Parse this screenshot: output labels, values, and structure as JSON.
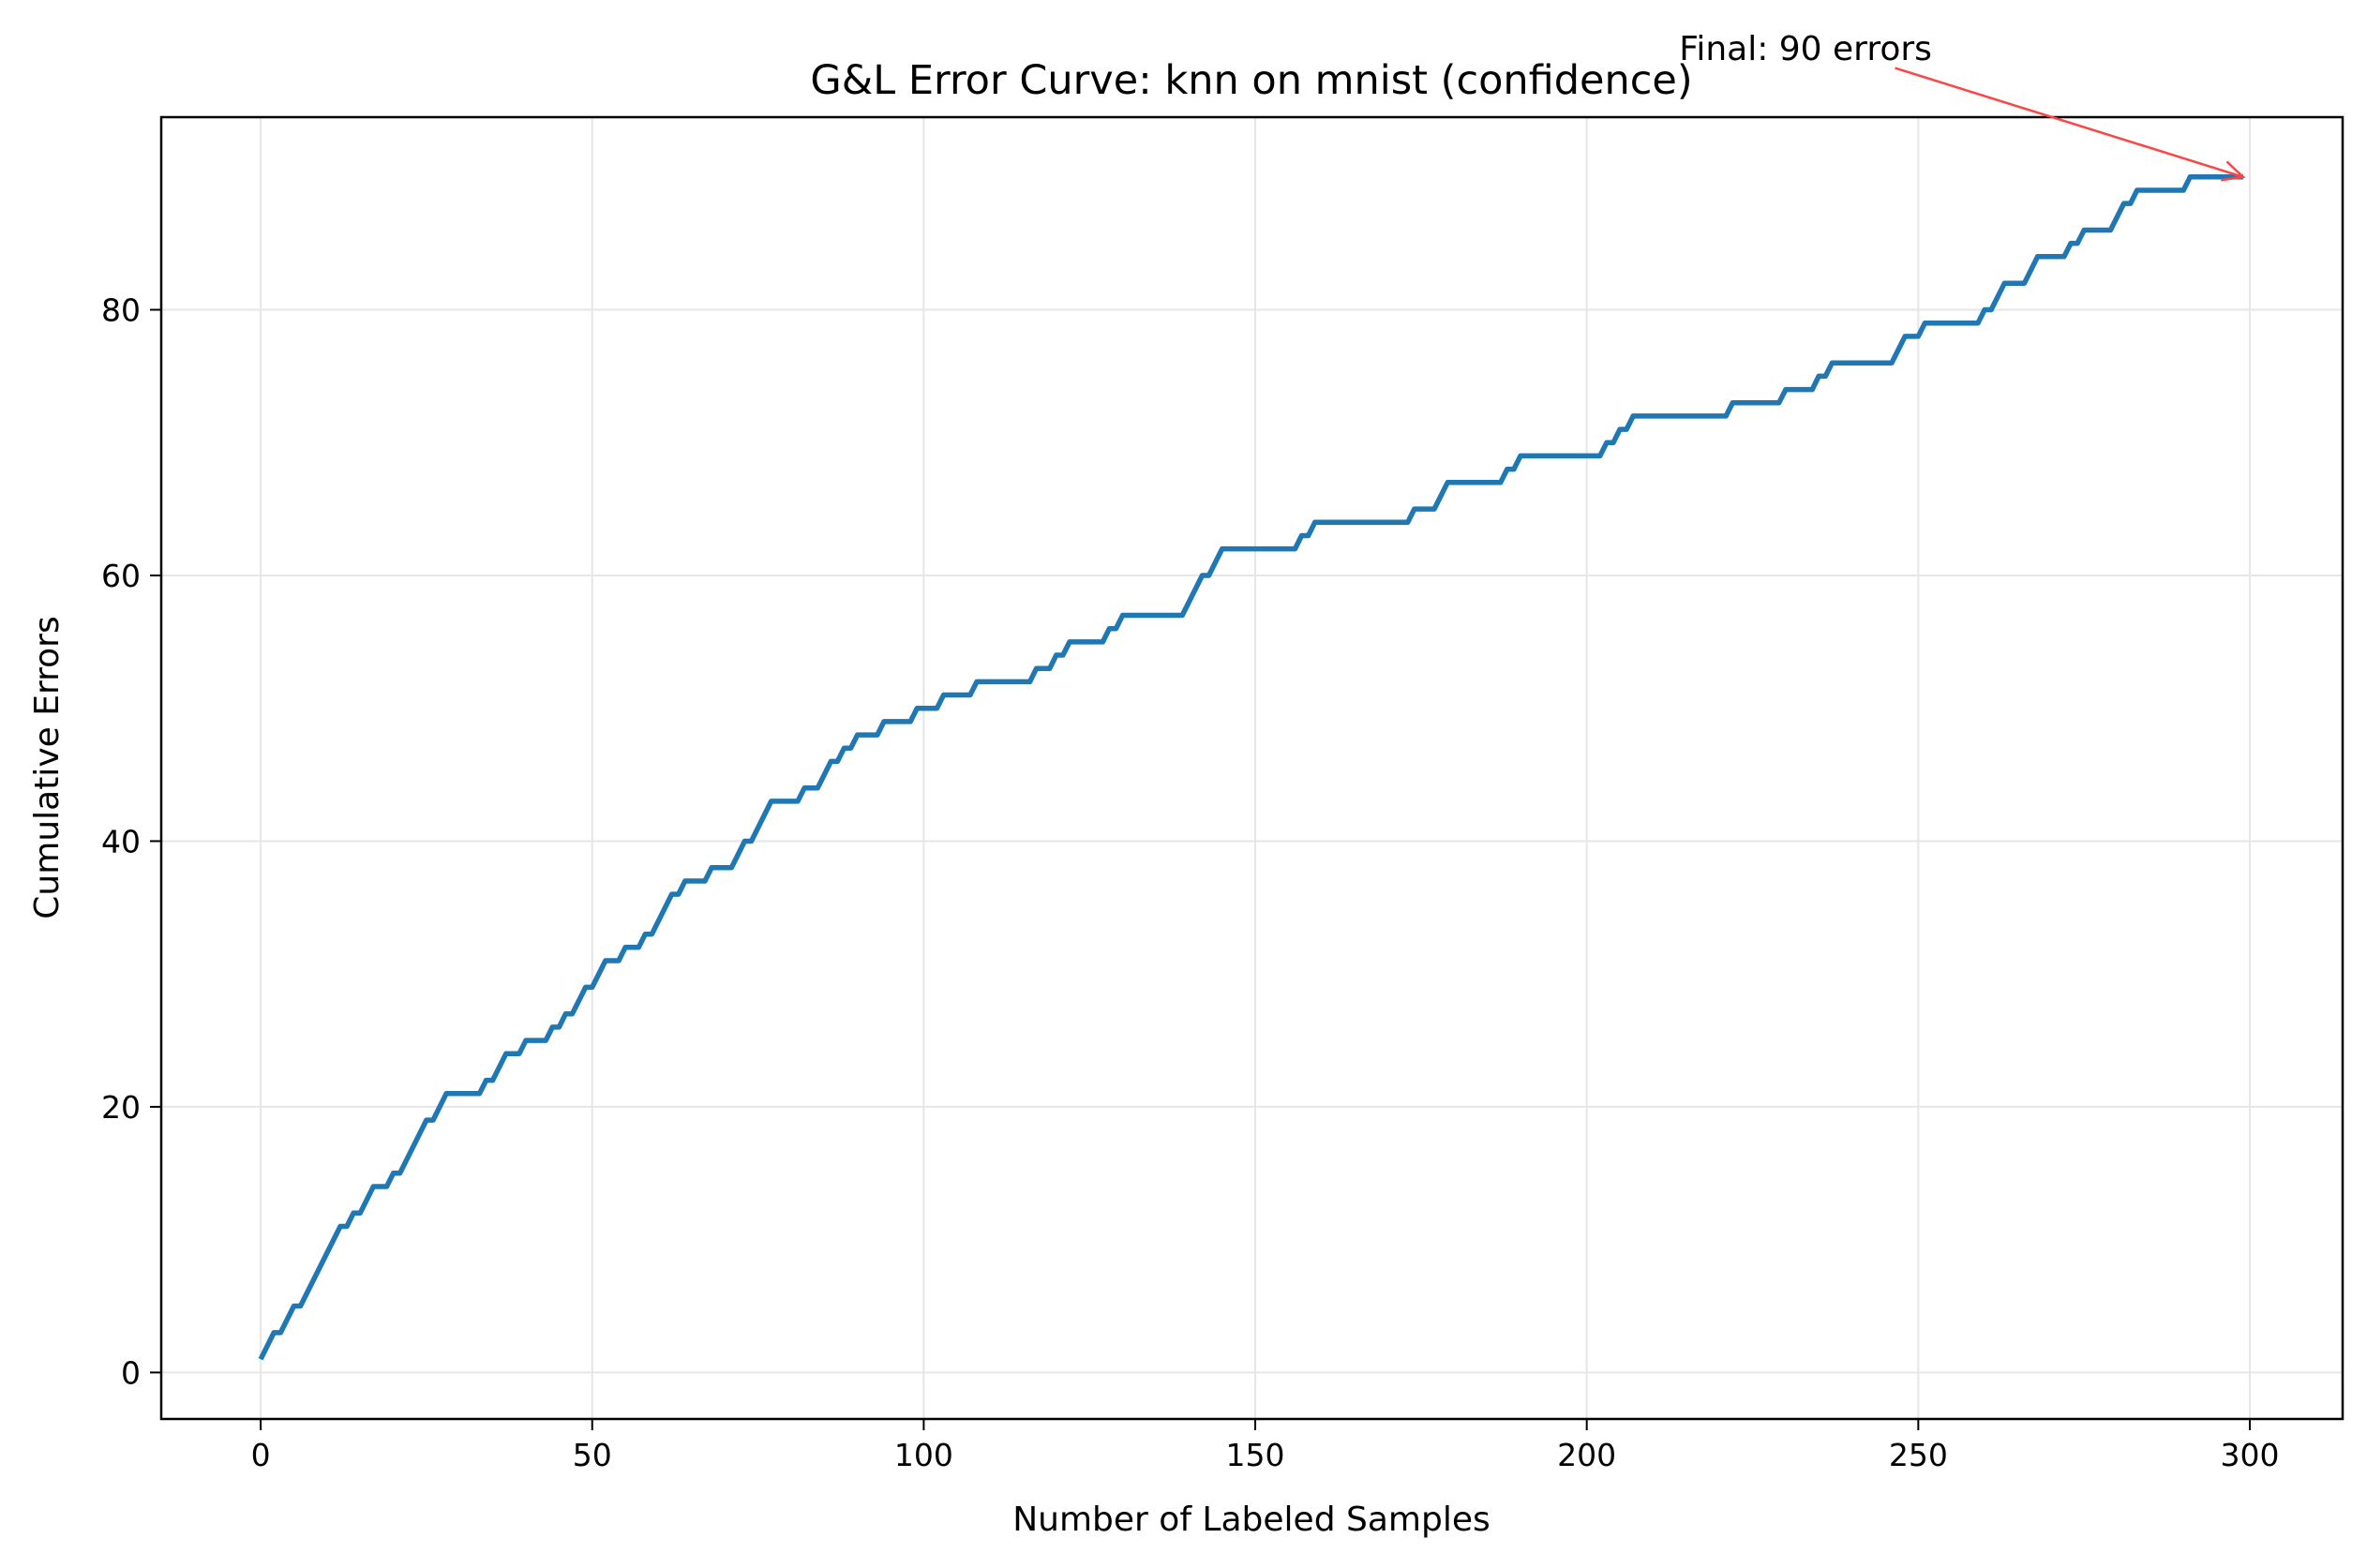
{
  "chart_data": {
    "type": "line",
    "title": "G&L Error Curve: knn on mnist (confidence)",
    "xlabel": "Number of Labeled Samples",
    "ylabel": "Cumulative Errors",
    "xlim": [
      -15,
      314
    ],
    "ylim": [
      -3.5,
      94.5
    ],
    "xticks": [
      0,
      50,
      100,
      150,
      200,
      250,
      300
    ],
    "yticks": [
      0,
      20,
      40,
      60,
      80
    ],
    "grid": true,
    "legend": "none",
    "series": [
      {
        "color": "#1f77b4",
        "points": [
          [
            0,
            1
          ],
          [
            2,
            3
          ],
          [
            3,
            3
          ],
          [
            5,
            5
          ],
          [
            6,
            5
          ],
          [
            12,
            11
          ],
          [
            13,
            11
          ],
          [
            14,
            12
          ],
          [
            15,
            12
          ],
          [
            17,
            14
          ],
          [
            19,
            14
          ],
          [
            20,
            15
          ],
          [
            21,
            15
          ],
          [
            25,
            19
          ],
          [
            26,
            19
          ],
          [
            28,
            21
          ],
          [
            33,
            21
          ],
          [
            34,
            22
          ],
          [
            35,
            22
          ],
          [
            37,
            24
          ],
          [
            39,
            24
          ],
          [
            40,
            25
          ],
          [
            43,
            25
          ],
          [
            44,
            26
          ],
          [
            45,
            26
          ],
          [
            46,
            27
          ],
          [
            47,
            27
          ],
          [
            49,
            29
          ],
          [
            50,
            29
          ],
          [
            52,
            31
          ],
          [
            54,
            31
          ],
          [
            55,
            32
          ],
          [
            57,
            32
          ],
          [
            58,
            33
          ],
          [
            59,
            33
          ],
          [
            62,
            36
          ],
          [
            63,
            36
          ],
          [
            64,
            37
          ],
          [
            67,
            37
          ],
          [
            68,
            38
          ],
          [
            71,
            38
          ],
          [
            73,
            40
          ],
          [
            74,
            40
          ],
          [
            77,
            43
          ],
          [
            81,
            43
          ],
          [
            82,
            44
          ],
          [
            84,
            44
          ],
          [
            86,
            46
          ],
          [
            87,
            46
          ],
          [
            88,
            47
          ],
          [
            89,
            47
          ],
          [
            90,
            48
          ],
          [
            93,
            48
          ],
          [
            94,
            49
          ],
          [
            98,
            49
          ],
          [
            99,
            50
          ],
          [
            102,
            50
          ],
          [
            103,
            51
          ],
          [
            107,
            51
          ],
          [
            108,
            52
          ],
          [
            116,
            52
          ],
          [
            117,
            53
          ],
          [
            119,
            53
          ],
          [
            120,
            54
          ],
          [
            121,
            54
          ],
          [
            122,
            55
          ],
          [
            127,
            55
          ],
          [
            128,
            56
          ],
          [
            129,
            56
          ],
          [
            130,
            57
          ],
          [
            139,
            57
          ],
          [
            142,
            60
          ],
          [
            143,
            60
          ],
          [
            145,
            62
          ],
          [
            156,
            62
          ],
          [
            157,
            63
          ],
          [
            158,
            63
          ],
          [
            159,
            64
          ],
          [
            173,
            64
          ],
          [
            174,
            65
          ],
          [
            177,
            65
          ],
          [
            179,
            67
          ],
          [
            187,
            67
          ],
          [
            188,
            68
          ],
          [
            189,
            68
          ],
          [
            190,
            69
          ],
          [
            202,
            69
          ],
          [
            203,
            70
          ],
          [
            204,
            70
          ],
          [
            205,
            71
          ],
          [
            206,
            71
          ],
          [
            207,
            72
          ],
          [
            221,
            72
          ],
          [
            222,
            73
          ],
          [
            229,
            73
          ],
          [
            230,
            74
          ],
          [
            234,
            74
          ],
          [
            235,
            75
          ],
          [
            236,
            75
          ],
          [
            237,
            76
          ],
          [
            246,
            76
          ],
          [
            248,
            78
          ],
          [
            250,
            78
          ],
          [
            251,
            79
          ],
          [
            259,
            79
          ],
          [
            260,
            80
          ],
          [
            261,
            80
          ],
          [
            263,
            82
          ],
          [
            266,
            82
          ],
          [
            268,
            84
          ],
          [
            272,
            84
          ],
          [
            273,
            85
          ],
          [
            274,
            85
          ],
          [
            275,
            86
          ],
          [
            279,
            86
          ],
          [
            281,
            88
          ],
          [
            282,
            88
          ],
          [
            283,
            89
          ],
          [
            290,
            89
          ],
          [
            291,
            90
          ],
          [
            299,
            90
          ]
        ]
      }
    ],
    "annotations": [
      {
        "text": "Final: 90 errors",
        "x": 299,
        "y": 90,
        "color": "#ff4444"
      }
    ]
  }
}
